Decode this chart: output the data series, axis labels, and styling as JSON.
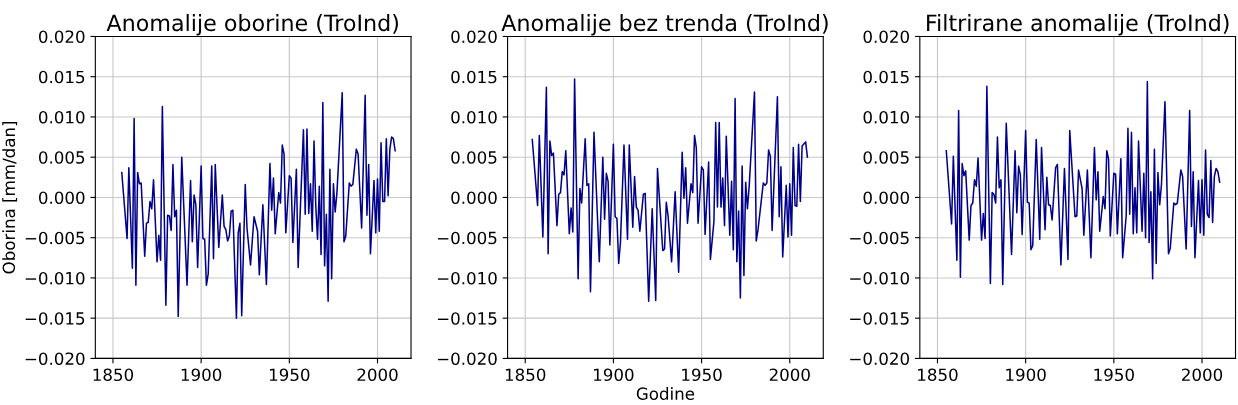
{
  "chart_data": [
    {
      "type": "line",
      "title": "Anomalije oborine (TroInd)",
      "ylabel": "Oborina [mm/dan]",
      "grid": true,
      "xlim": [
        1840,
        2019
      ],
      "ylim": [
        -0.02,
        0.02
      ],
      "xticks": [
        1850,
        1900,
        1950,
        2000
      ],
      "yticks": [
        {
          "value": -0.02,
          "label": "−0.020"
        },
        {
          "value": -0.015,
          "label": "−0.015"
        },
        {
          "value": -0.01,
          "label": "−0.010"
        },
        {
          "value": -0.005,
          "label": "−0.005"
        },
        {
          "value": 0,
          "label": "0.000"
        },
        {
          "value": 0.005,
          "label": "0.005"
        },
        {
          "value": 0.01,
          "label": "0.010"
        },
        {
          "value": 0.015,
          "label": "0.015"
        },
        {
          "value": 0.02,
          "label": "0.020"
        }
      ],
      "series": [
        {
          "color": "#00008b",
          "x": [
            1855,
            1858,
            1859,
            1861,
            1862,
            1863,
            1864,
            1865,
            1866,
            1868,
            1869,
            1870,
            1871,
            1872,
            1873,
            1875,
            1876,
            1877,
            1878,
            1880,
            1881,
            1882,
            1883,
            1884,
            1885,
            1886,
            1887,
            1889,
            1892,
            1894,
            1895,
            1896,
            1897,
            1898,
            1900,
            1901,
            1902,
            1903,
            1904,
            1906,
            1907,
            1908,
            1910,
            1912,
            1913,
            1914,
            1915,
            1916,
            1917,
            1918,
            1920,
            1921,
            1922,
            1923,
            1925,
            1926,
            1928,
            1930,
            1932,
            1933,
            1935,
            1937,
            1939,
            1940,
            1941,
            1942,
            1944,
            1945,
            1946,
            1947,
            1948,
            1950,
            1951,
            1952,
            1954,
            1955,
            1956,
            1958,
            1959,
            1960,
            1961,
            1962,
            1963,
            1964,
            1965,
            1966,
            1967,
            1968,
            1969,
            1970,
            1971,
            1972,
            1973,
            1974,
            1975,
            1976,
            1977,
            1980,
            1981,
            1982,
            1984,
            1985,
            1986,
            1988,
            1989,
            1991,
            1993,
            1994,
            1995,
            1996,
            1998,
            1999,
            2000,
            2001,
            2002,
            2003,
            2004,
            2005,
            2006,
            2007,
            2008,
            2009,
            2010
          ],
          "values": [
            0.0031,
            -0.0051,
            0.0037,
            -0.0088,
            0.0098,
            -0.0109,
            0.0031,
            0.0017,
            0.0018,
            -0.0073,
            -0.0032,
            -0.0031,
            -0.0005,
            -0.0014,
            0.0022,
            -0.008,
            -0.0047,
            -0.0078,
            0.0113,
            -0.0134,
            -0.0022,
            -0.0023,
            -0.0041,
            0.0041,
            -0.0024,
            -0.0016,
            -0.0148,
            0.005,
            -0.0109,
            0.0021,
            -0.0055,
            0.0003,
            -0.0009,
            -0.0087,
            0.0039,
            -0.0051,
            -0.0052,
            -0.0109,
            -0.0095,
            0.0039,
            -0.0076,
            0.0041,
            -0.0062,
            0.0003,
            -0.0036,
            -0.004,
            -0.0054,
            -0.0048,
            -0.0017,
            -0.0016,
            -0.015,
            -0.0044,
            -0.0032,
            -0.0147,
            0.0016,
            -0.0038,
            -0.0084,
            -0.0024,
            -0.0042,
            -0.0096,
            -0.0009,
            -0.0108,
            0.0042,
            -0.0016,
            0.0024,
            -0.0045,
            0.0006,
            -0.0007,
            0.0065,
            0.0054,
            -0.0044,
            0.0027,
            0.0024,
            -0.0056,
            0.0035,
            -0.0087,
            -0.0028,
            0.0084,
            -0.0021,
            0.0085,
            -0.002,
            0.0017,
            -0.0042,
            0.007,
            -0.0011,
            -0.0052,
            0.0014,
            -0.0071,
            0.0118,
            -0.0085,
            -0.0021,
            -0.0129,
            0.0035,
            -0.0101,
            0.0017,
            -0.0018,
            0.0006,
            0.013,
            -0.0055,
            -0.0048,
            0.0018,
            0.0014,
            0.0016,
            0.006,
            0.0054,
            -0.0038,
            0.0127,
            -0.0022,
            0.0041,
            -0.007,
            0.0021,
            -0.0044,
            0.0023,
            -0.0042,
            0.0068,
            -0.0005,
            -0.0005,
            0.0073,
            0.0002,
            0.006,
            0.0075,
            0.0073,
            0.0058
          ]
        }
      ]
    },
    {
      "type": "line",
      "title": "Anomalije bez trenda (TroInd)",
      "xlabel": "Godine",
      "grid": true,
      "xlim": [
        1840,
        2019
      ],
      "ylim": [
        -0.02,
        0.02
      ],
      "xticks": [
        1850,
        1900,
        1950,
        2000
      ],
      "yticks": [
        {
          "value": -0.02,
          "label": "−0.020"
        },
        {
          "value": -0.015,
          "label": "−0.015"
        },
        {
          "value": -0.01,
          "label": "−0.010"
        },
        {
          "value": -0.005,
          "label": "−0.005"
        },
        {
          "value": 0,
          "label": "0.000"
        },
        {
          "value": 0.005,
          "label": "0.005"
        },
        {
          "value": 0.01,
          "label": "0.010"
        },
        {
          "value": 0.015,
          "label": "0.015"
        },
        {
          "value": 0.02,
          "label": "0.020"
        }
      ],
      "series": [
        {
          "color": "#00008b",
          "x": [
            1854,
            1857,
            1858,
            1860,
            1862,
            1863,
            1864,
            1865,
            1866,
            1868,
            1869,
            1870,
            1871,
            1872,
            1873,
            1875,
            1876,
            1877,
            1878,
            1880,
            1881,
            1882,
            1884,
            1885,
            1886,
            1887,
            1889,
            1892,
            1894,
            1895,
            1896,
            1897,
            1898,
            1900,
            1901,
            1902,
            1903,
            1904,
            1906,
            1908,
            1909,
            1911,
            1912,
            1913,
            1914,
            1915,
            1917,
            1918,
            1920,
            1922,
            1924,
            1925,
            1928,
            1929,
            1930,
            1931,
            1933,
            1935,
            1937,
            1939,
            1940,
            1941,
            1942,
            1944,
            1945,
            1946,
            1947,
            1948,
            1950,
            1951,
            1952,
            1954,
            1955,
            1957,
            1958,
            1959,
            1960,
            1961,
            1962,
            1963,
            1964,
            1966,
            1967,
            1968,
            1969,
            1970,
            1971,
            1972,
            1973,
            1974,
            1975,
            1976,
            1977,
            1980,
            1981,
            1982,
            1985,
            1986,
            1987,
            1988,
            1989,
            1990,
            1993,
            1994,
            1995,
            1996,
            1998,
            1999,
            2000,
            2001,
            2002,
            2003,
            2004,
            2005,
            2006,
            2007,
            2009,
            2010
          ],
          "values": [
            0.0072,
            -0.001,
            0.0077,
            -0.0049,
            0.0137,
            -0.007,
            0.007,
            0.0052,
            0.0055,
            -0.0035,
            0.0004,
            0.0006,
            0.0032,
            0.0028,
            0.0058,
            -0.0045,
            -0.0013,
            -0.0043,
            0.0147,
            -0.0101,
            0.0011,
            -0.0007,
            0.0073,
            0.0015,
            0.0017,
            -0.0117,
            0.0081,
            -0.008,
            0.005,
            -0.0027,
            0.003,
            0.002,
            -0.0059,
            0.0066,
            -0.0024,
            -0.0026,
            -0.0082,
            -0.0056,
            0.0065,
            -0.0052,
            0.0065,
            -0.0037,
            0.0026,
            -0.0012,
            -0.0016,
            -0.0042,
            0.0004,
            0.0005,
            -0.0129,
            -0.0014,
            -0.0128,
            0.0036,
            -0.0066,
            -0.0064,
            -0.0006,
            -0.0023,
            -0.008,
            0.0007,
            -0.0093,
            0.0056,
            -0.0001,
            0.0037,
            -0.0032,
            0.0017,
            0.0006,
            0.0077,
            0.0062,
            -0.0032,
            0.0038,
            0.0034,
            -0.0046,
            0.0044,
            -0.0077,
            -0.003,
            0.0093,
            -0.0012,
            0.0093,
            -0.0012,
            0.0024,
            -0.0035,
            0.0076,
            -0.0047,
            0.002,
            -0.0065,
            0.0123,
            -0.008,
            -0.0017,
            -0.0125,
            0.0039,
            -0.0097,
            0.0019,
            -0.0014,
            0.0014,
            0.0131,
            -0.0054,
            -0.004,
            0.0018,
            0.0015,
            0.0018,
            0.0059,
            0.0051,
            -0.0041,
            0.0125,
            -0.0024,
            0.0038,
            -0.0074,
            0.0015,
            -0.0049,
            0.0017,
            -0.0047,
            0.0062,
            -0.001,
            -0.0011,
            0.0066,
            -0.0005,
            0.0064,
            0.0069,
            0.005
          ]
        }
      ]
    },
    {
      "type": "line",
      "title": "Filtrirane anomalije (TroInd)",
      "grid": true,
      "xlim": [
        1840,
        2019
      ],
      "ylim": [
        -0.02,
        0.02
      ],
      "xticks": [
        1850,
        1900,
        1950,
        2000
      ],
      "yticks": [
        {
          "value": -0.02,
          "label": "−0.020"
        },
        {
          "value": -0.015,
          "label": "−0.015"
        },
        {
          "value": -0.01,
          "label": "−0.010"
        },
        {
          "value": -0.005,
          "label": "−0.005"
        },
        {
          "value": 0,
          "label": "0.000"
        },
        {
          "value": 0.005,
          "label": "0.005"
        },
        {
          "value": 0.01,
          "label": "0.010"
        },
        {
          "value": 0.015,
          "label": "0.015"
        },
        {
          "value": 0.02,
          "label": "0.020"
        }
      ],
      "series": [
        {
          "color": "#00008b",
          "x": [
            1855,
            1858,
            1859,
            1861,
            1862,
            1863,
            1864,
            1865,
            1866,
            1868,
            1869,
            1870,
            1871,
            1872,
            1873,
            1875,
            1876,
            1877,
            1878,
            1880,
            1881,
            1882,
            1883,
            1884,
            1885,
            1886,
            1887,
            1889,
            1892,
            1894,
            1895,
            1896,
            1897,
            1898,
            1900,
            1901,
            1902,
            1903,
            1904,
            1906,
            1908,
            1909,
            1911,
            1912,
            1913,
            1914,
            1915,
            1917,
            1918,
            1920,
            1922,
            1924,
            1925,
            1928,
            1929,
            1930,
            1932,
            1933,
            1935,
            1937,
            1939,
            1940,
            1941,
            1942,
            1944,
            1945,
            1946,
            1947,
            1948,
            1950,
            1951,
            1952,
            1954,
            1955,
            1957,
            1958,
            1959,
            1960,
            1961,
            1962,
            1963,
            1964,
            1966,
            1967,
            1968,
            1969,
            1970,
            1971,
            1972,
            1973,
            1974,
            1975,
            1976,
            1977,
            1979,
            1981,
            1982,
            1984,
            1985,
            1986,
            1988,
            1989,
            1991,
            1993,
            1994,
            1995,
            1996,
            1998,
            1999,
            2000,
            2001,
            2002,
            2003,
            2004,
            2005,
            2006,
            2007,
            2008,
            2009,
            2010
          ],
          "values": [
            0.0058,
            -0.0033,
            0.0051,
            -0.0078,
            0.0108,
            -0.0099,
            0.0042,
            0.0027,
            0.0033,
            -0.0053,
            -0.001,
            -0.0007,
            0.0022,
            0.0014,
            0.0049,
            -0.0053,
            -0.002,
            -0.0051,
            0.0138,
            -0.0107,
            0.0006,
            0.0004,
            -0.0007,
            0.0075,
            0.0012,
            0.0022,
            -0.0108,
            0.0092,
            -0.0071,
            0.0058,
            -0.0019,
            0.0039,
            0.0028,
            -0.0046,
            0.0083,
            -0.0006,
            -0.0007,
            -0.0065,
            -0.006,
            0.0072,
            -0.0052,
            0.0062,
            -0.004,
            0.0025,
            -0.0009,
            -0.001,
            -0.0028,
            0.0037,
            0.0041,
            -0.0084,
            0.0036,
            -0.0077,
            0.0083,
            -0.0024,
            -0.0023,
            0.0034,
            0.0011,
            -0.0047,
            0.0034,
            -0.0075,
            0.0062,
            -0.0003,
            0.0032,
            -0.0042,
            0.0001,
            -0.0014,
            0.0058,
            0.0048,
            -0.0048,
            0.003,
            0.0029,
            -0.0045,
            0.0048,
            -0.0075,
            -0.0023,
            0.0086,
            -0.0021,
            0.0081,
            -0.0045,
            0.0012,
            -0.0044,
            0.007,
            -0.0042,
            0.003,
            -0.005,
            0.0144,
            -0.0056,
            0.0007,
            -0.0101,
            0.006,
            -0.0082,
            0.0031,
            -0.0009,
            0.0016,
            0.0119,
            -0.007,
            -0.0063,
            -0.0007,
            -0.0009,
            -0.0007,
            0.0034,
            0.0026,
            -0.0064,
            0.0108,
            -0.0036,
            0.0032,
            -0.0075,
            0.0021,
            -0.0044,
            0.0022,
            -0.0047,
            0.0059,
            -0.0021,
            -0.0025,
            0.0046,
            -0.0031,
            0.0026,
            0.0036,
            0.0032,
            0.0019
          ]
        }
      ]
    }
  ]
}
